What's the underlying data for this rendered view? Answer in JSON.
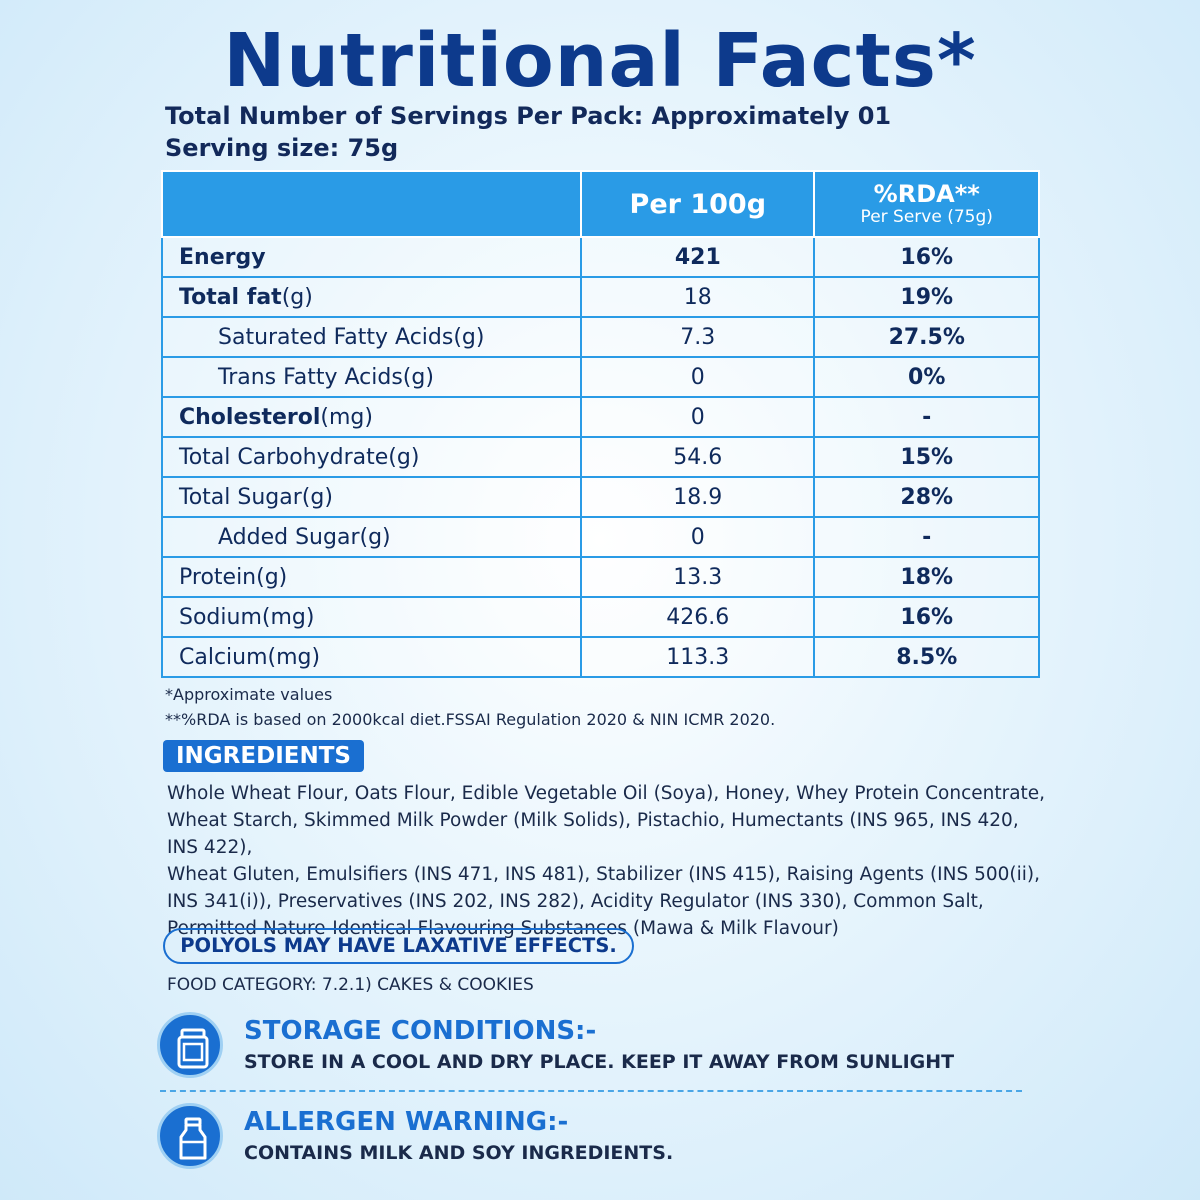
{
  "title": "Nutritional Facts*",
  "servings_line": "Total Number of Servings Per Pack: Approximately 01",
  "serving_size_line": "Serving size: 75g",
  "table": {
    "header": {
      "per100": "Per 100g",
      "rda": "%RDA**",
      "rda_sub": "Per Serve (75g)"
    },
    "rows": [
      {
        "name_bold": "Energy",
        "name_rest": "",
        "per100": "421",
        "rda": "16%"
      },
      {
        "name_bold": "Total fat",
        "name_rest": "(g)",
        "per100": "18",
        "rda": "19%"
      },
      {
        "name_bold": "",
        "name_rest": "Saturated Fatty Acids(g)",
        "per100": "7.3",
        "rda": "27.5%"
      },
      {
        "name_bold": "",
        "name_rest": "Trans Fatty Acids(g)",
        "per100": "0",
        "rda": "0%"
      },
      {
        "name_bold": "Cholesterol",
        "name_rest": "(mg)",
        "per100": "0",
        "rda": "-"
      },
      {
        "name_bold": "",
        "name_rest": "Total Carbohydrate(g)",
        "per100": "54.6",
        "rda": "15%"
      },
      {
        "name_bold": "",
        "name_rest": "Total Sugar(g)",
        "per100": "18.9",
        "rda": "28%"
      },
      {
        "name_bold": "",
        "name_rest": "Added Sugar(g)",
        "per100": "0",
        "rda": "-"
      },
      {
        "name_bold": "",
        "name_rest": "Protein(g)",
        "per100": "13.3",
        "rda": "18%"
      },
      {
        "name_bold": "",
        "name_rest": "Sodium(mg)",
        "per100": "426.6",
        "rda": "16%"
      },
      {
        "name_bold": "",
        "name_rest": "Calcium(mg)",
        "per100": "113.3",
        "rda": "8.5%"
      }
    ]
  },
  "notes": {
    "approx": "*Approximate values",
    "rda": "**%RDA is based on 2000kcal diet.FSSAI Regulation 2020 & NIN ICMR 2020."
  },
  "ingredients": {
    "label": "INGREDIENTS",
    "lines": [
      "Whole Wheat Flour, Oats Flour, Edible Vegetable Oil (Soya), Honey, Whey Protein Concentrate,",
      "Wheat Starch, Skimmed Milk Powder (Milk Solids), Pistachio, Humectants (INS 965, INS 420, INS 422),",
      "Wheat Gluten, Emulsifiers (INS 471, INS 481), Stabilizer (INS 415), Raising Agents (INS 500(ii),",
      "INS 341(i)), Preservatives (INS 202, INS 282), Acidity Regulator (INS 330), Common Salt,",
      "Permitted Nature-Identical Flavouring Substances (Mawa & Milk Flavour)"
    ]
  },
  "polyols_warning": "POLYOLS MAY HAVE LAXATIVE EFFECTS.",
  "food_category": "FOOD CATEGORY: 7.2.1) CAKES & COOKIES",
  "storage": {
    "icon": "storage-jar-icon",
    "heading": "STORAGE CONDITIONS:-",
    "text": "STORE IN A COOL AND DRY PLACE. KEEP IT AWAY FROM SUNLIGHT"
  },
  "allergen": {
    "icon": "milk-bottle-icon",
    "heading": "ALLERGEN WARNING:-",
    "text": "CONTAINS MILK AND SOY INGREDIENTS."
  },
  "colors": {
    "accent": "#1a6fd1",
    "header_fill": "#2a9be6",
    "title": "#0d3a8c"
  }
}
